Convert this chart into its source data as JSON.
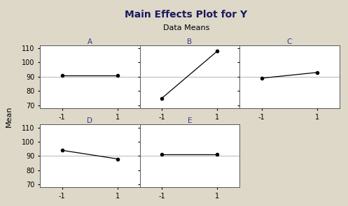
{
  "title": "Main Effects Plot for Y",
  "subtitle": "Data Means",
  "ylabel": "Mean",
  "background_color": "#ddd8c8",
  "plot_bg_color": "#ffffff",
  "panels": [
    {
      "label": "A",
      "x": [
        -1,
        1
      ],
      "y": [
        91,
        91
      ]
    },
    {
      "label": "B",
      "x": [
        -1,
        1
      ],
      "y": [
        75,
        108
      ]
    },
    {
      "label": "C",
      "x": [
        -1,
        1
      ],
      "y": [
        89,
        93
      ]
    },
    {
      "label": "D",
      "x": [
        -1,
        1
      ],
      "y": [
        94,
        88
      ]
    },
    {
      "label": "E",
      "x": [
        -1,
        1
      ],
      "y": [
        91,
        91
      ]
    }
  ],
  "ylim": [
    68,
    112
  ],
  "yticks": [
    70,
    80,
    90,
    100,
    110
  ],
  "xticks": [
    -1,
    1
  ],
  "line_color": "#000000",
  "marker": "o",
  "marker_size": 3,
  "title_color": "#1a1a5e",
  "label_color": "#3a3a8a",
  "axis_color": "#000000",
  "tick_color": "#000000",
  "title_fontsize": 10,
  "subtitle_fontsize": 8,
  "label_fontsize": 7.5,
  "tick_fontsize": 7,
  "ylabel_fontsize": 8
}
